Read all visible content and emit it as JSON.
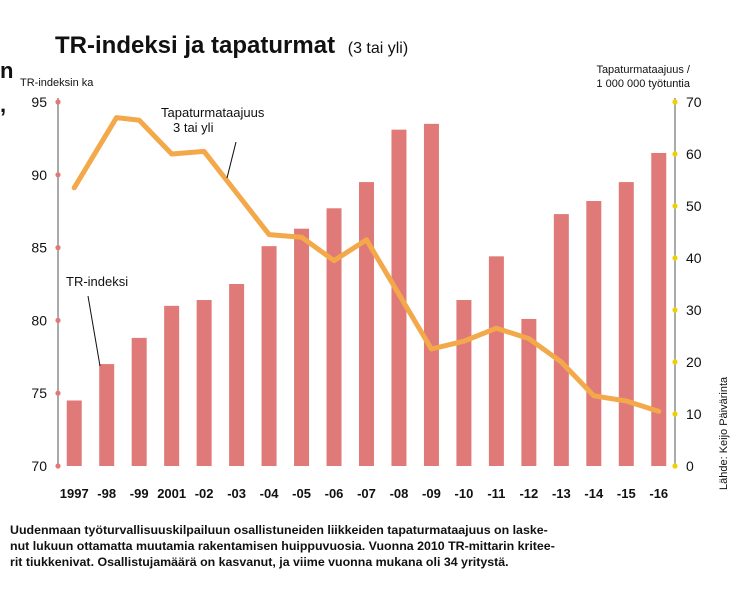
{
  "edge_text": [
    "n",
    ","
  ],
  "caption": [
    "Uudenmaan työturvallisuuskilpailuun osallistuneiden liikkeiden tapaturmataajuus on laske-",
    "nut lukuun ottamatta muutamia rakentamisen huippuvuosia. Vuonna 2010 TR-mittarin kritee-",
    "rit tiukkenivat. Osallistujamäärä on kasvanut, ja viime vuonna mukana oli 34 yritystä."
  ],
  "chart_data": {
    "type": "bar+line",
    "title": "TR-indeksi ja tapaturmat",
    "subtitle": "(3 tai yli)",
    "left_axis_label": "TR-indeksin ka",
    "right_axis_label": [
      "Tapaturmataajuus /",
      "1 000 000 työtuntia"
    ],
    "categories": [
      "1997",
      "-98",
      "-99",
      "2001",
      "-02",
      "-03",
      "-04",
      "-05",
      "-06",
      "-07",
      "-08",
      "-09",
      "-10",
      "-11",
      "-12",
      "-13",
      "-14",
      "-15",
      "-16"
    ],
    "left_ticks": [
      70,
      75,
      80,
      85,
      90,
      95
    ],
    "right_ticks": [
      0,
      10,
      20,
      30,
      40,
      50,
      60,
      70
    ],
    "ylim_left": [
      70,
      95
    ],
    "ylim_right": [
      0,
      70
    ],
    "series": [
      {
        "name": "TR-indeksi",
        "type": "bar",
        "axis": "left",
        "values": [
          74.5,
          77,
          78.8,
          81,
          81.4,
          82.5,
          85.1,
          86.3,
          87.7,
          89.5,
          93.1,
          93.5,
          81.4,
          84.4,
          80.1,
          87.3,
          88.2,
          89.5,
          91.5
        ]
      },
      {
        "name": "Tapaturmataajuus 3 tai yli",
        "type": "line",
        "axis": "right",
        "values": [
          53.5,
          null,
          66.5,
          60,
          60.5,
          52.5,
          44.5,
          44,
          39.5,
          43.5,
          33,
          22.5,
          24,
          26.5,
          24.5,
          20,
          13.5,
          12.5,
          10.5
        ]
      }
    ],
    "line_extra_points": [
      {
        "x": 1.3,
        "y": 67
      }
    ],
    "annotations": [
      {
        "text": [
          "Tapaturmataajuus",
          "3 tai yli"
        ],
        "target": "line"
      },
      {
        "text": [
          "TR-indeksi"
        ],
        "target": "bar"
      }
    ],
    "source": "Lähde: Keijo Päivärinta",
    "colors": {
      "bar": "#e07a78",
      "line": "#f3a84a",
      "left_dot": "#e07a78",
      "right_dot": "#f0d000"
    }
  }
}
